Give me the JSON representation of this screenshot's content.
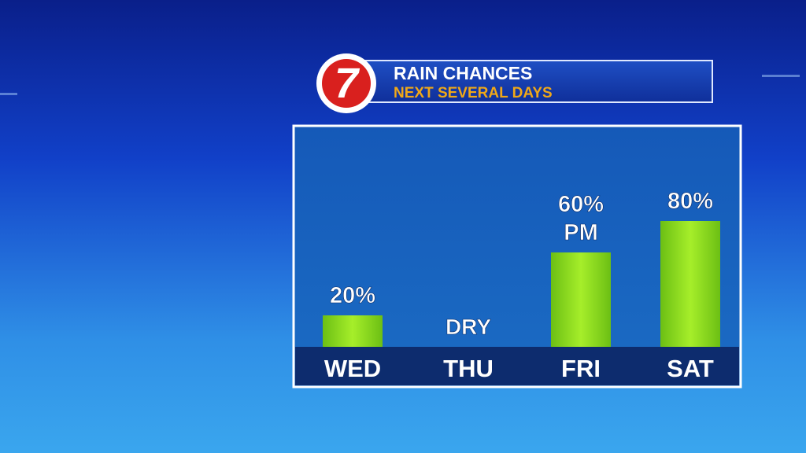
{
  "chart_data": {
    "type": "bar",
    "logo": "7",
    "title": "RAIN CHANCES",
    "subtitle": "NEXT SEVERAL DAYS",
    "categories": [
      "WED",
      "THU",
      "FRI",
      "SAT"
    ],
    "values": [
      20,
      0,
      60,
      80
    ],
    "value_labels": [
      "20%",
      "DRY",
      "60%",
      "80%"
    ],
    "value_notes": [
      null,
      null,
      "PM",
      null
    ],
    "color": "#8fd81f"
  }
}
